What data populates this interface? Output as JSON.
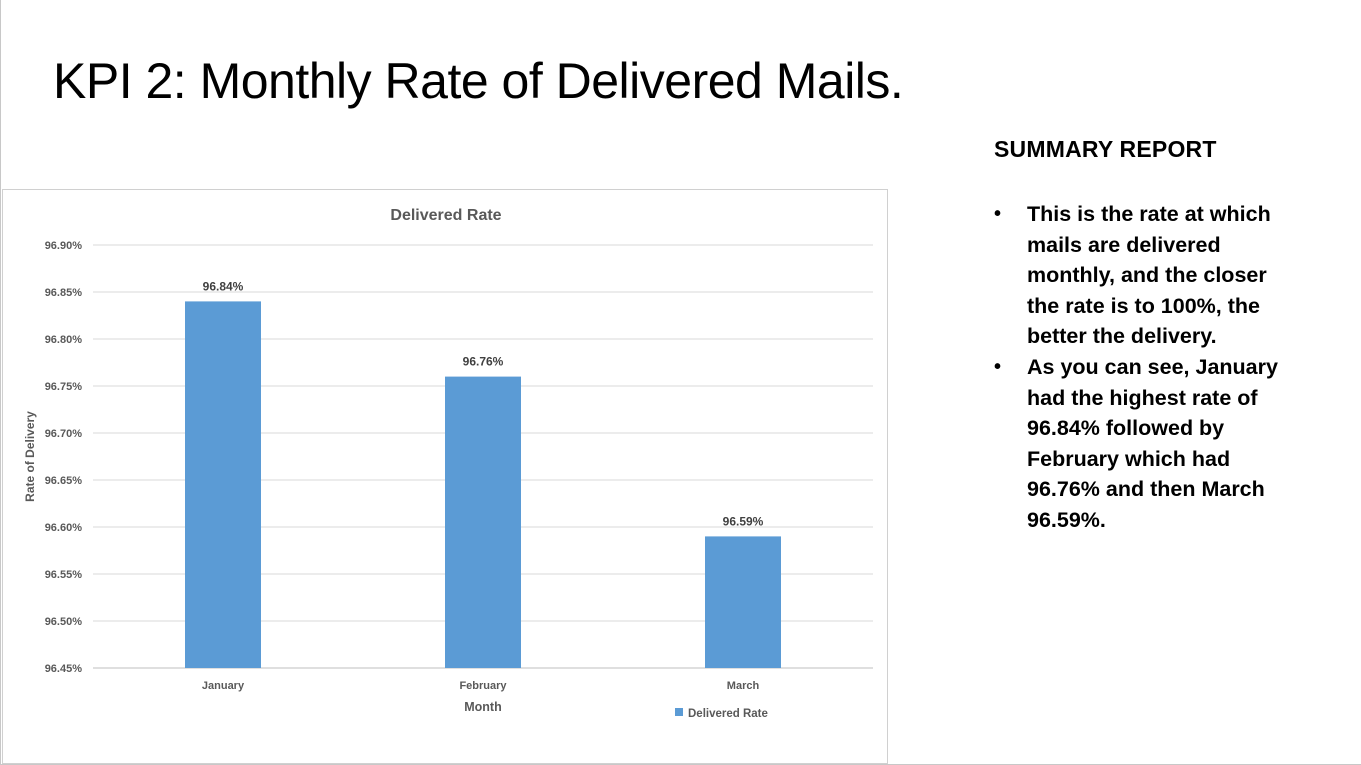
{
  "slide": {
    "title": "KPI 2: Monthly Rate of Delivered Mails."
  },
  "summary": {
    "heading": "SUMMARY REPORT",
    "bullets": [
      "This is the rate at which mails are delivered monthly, and the closer the rate is to 100%, the better the delivery.",
      "As you can see, January had the highest rate of 96.84% followed by February which had 96.76% and then March 96.59%."
    ]
  },
  "chart_data": {
    "type": "bar",
    "title": "Delivered Rate",
    "xlabel": "Month",
    "ylabel": "Rate of Delivery",
    "categories": [
      "January",
      "February",
      "March"
    ],
    "series": [
      {
        "name": "Delivered Rate",
        "values": [
          96.84,
          96.76,
          96.59
        ],
        "labels": [
          "96.84%",
          "96.76%",
          "96.59%"
        ],
        "color": "#5b9bd5"
      }
    ],
    "ylim": [
      96.45,
      96.9
    ],
    "yticks": [
      "96.45%",
      "96.50%",
      "96.55%",
      "96.60%",
      "96.65%",
      "96.70%",
      "96.75%",
      "96.80%",
      "96.85%",
      "96.90%"
    ],
    "grid": true,
    "legend": "bottom-right"
  }
}
